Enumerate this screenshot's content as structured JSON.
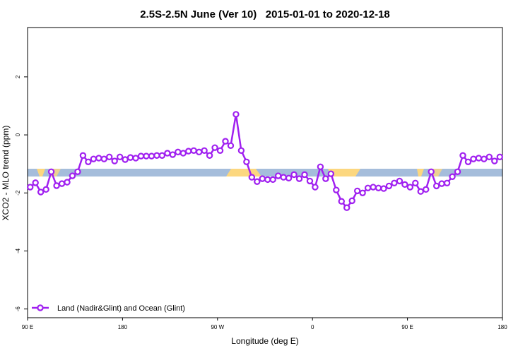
{
  "chart_data": {
    "type": "line",
    "title": "2.5S-2.5N June (Ver 10)   2015-01-01 to 2020-12-18",
    "xlabel": "Longitude (deg E)",
    "ylabel": "XCO2 - MLO trend (ppm)",
    "xlim": [
      90,
      540
    ],
    "xticks": [
      {
        "value": 90,
        "label": "90 E"
      },
      180,
      {
        "value": 270,
        "label": "90 W"
      },
      {
        "value": 360,
        "label": "0"
      },
      {
        "value": 450,
        "label": "90 E"
      },
      {
        "value": 540,
        "label": "180"
      }
    ],
    "ylim": [
      -6.3,
      3.7
    ],
    "yticks": [
      -6,
      -4,
      -2,
      0,
      2
    ],
    "legend": "bottom-left",
    "x": [
      92.5,
      97.5,
      102.5,
      107.5,
      112.5,
      117.5,
      122.5,
      127.5,
      132.5,
      137.5,
      142.5,
      147.5,
      152.5,
      157.5,
      162.5,
      167.5,
      172.5,
      177.5,
      182.5,
      187.5,
      192.5,
      197.5,
      202.5,
      207.5,
      212.5,
      217.5,
      222.5,
      227.5,
      232.5,
      237.5,
      242.5,
      247.5,
      252.5,
      257.5,
      262.5,
      267.5,
      272.5,
      277.5,
      282.5,
      287.5,
      292.5,
      297.5,
      302.5,
      307.5,
      312.5,
      317.5,
      322.5,
      327.5,
      332.5,
      337.5,
      342.5,
      347.5,
      352.5,
      357.5,
      362.5,
      367.5,
      372.5,
      377.5,
      382.5,
      387.5,
      392.5,
      397.5,
      402.5,
      407.5,
      412.5,
      417.5,
      422.5,
      427.5,
      432.5,
      437.5,
      442.5,
      447.5,
      452.5,
      457.5,
      462.5,
      467.5,
      472.5,
      477.5,
      482.5,
      487.5,
      492.5,
      497.5,
      502.5,
      507.5,
      512.5,
      517.5,
      522.5,
      527.5,
      532.5,
      537.5
    ],
    "series": [
      {
        "name": "Land (Nadir&Glint) and Ocean (Glint)",
        "color": "#a020f0",
        "values": [
          -1.8,
          -1.65,
          -1.97,
          -1.88,
          -1.27,
          -1.75,
          -1.68,
          -1.63,
          -1.41,
          -1.27,
          -0.71,
          -0.93,
          -0.83,
          -0.8,
          -0.83,
          -0.76,
          -0.9,
          -0.76,
          -0.85,
          -0.78,
          -0.8,
          -0.73,
          -0.73,
          -0.73,
          -0.71,
          -0.71,
          -0.63,
          -0.68,
          -0.59,
          -0.63,
          -0.56,
          -0.54,
          -0.59,
          -0.54,
          -0.71,
          -0.44,
          -0.54,
          -0.22,
          -0.37,
          0.71,
          -0.54,
          -0.93,
          -1.46,
          -1.61,
          -1.51,
          -1.54,
          -1.54,
          -1.41,
          -1.46,
          -1.49,
          -1.37,
          -1.51,
          -1.37,
          -1.59,
          -1.8,
          -1.1,
          -1.51,
          -1.34,
          -1.9,
          -2.29,
          -2.51,
          -2.27,
          -1.93,
          -2.0,
          -1.83,
          -1.8,
          -1.83,
          -1.85,
          -1.76,
          -1.66,
          -1.59,
          -1.71,
          -1.8,
          -1.66,
          -1.95,
          -1.88,
          -1.27,
          -1.76,
          -1.68,
          -1.66,
          -1.44,
          -1.27,
          -0.71,
          -0.93,
          -0.83,
          -0.8,
          -0.83,
          -0.76,
          -0.9,
          -0.76
        ]
      }
    ]
  }
}
